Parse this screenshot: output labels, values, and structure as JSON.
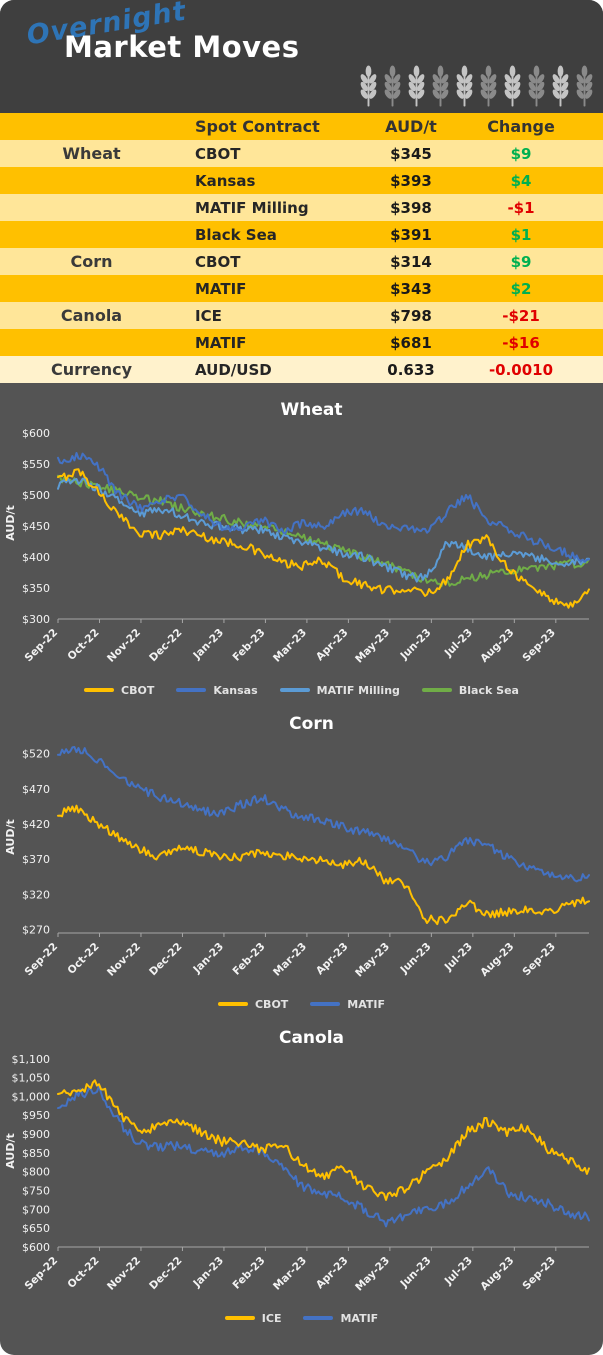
{
  "header": {
    "script_word": "Overnight",
    "title": "Market Moves",
    "wheat_icon_count": 10,
    "wheat_icon_colors": [
      "#c4c4c4",
      "#8a8a8a"
    ]
  },
  "table": {
    "columns": [
      "",
      "Spot Contract",
      "AUD/t",
      "Change"
    ],
    "rows": [
      {
        "category": "Wheat",
        "contract": "CBOT",
        "price": "$345",
        "change": "$9",
        "direction": "up"
      },
      {
        "category": "",
        "contract": "Kansas",
        "price": "$393",
        "change": "$4",
        "direction": "up"
      },
      {
        "category": "",
        "contract": "MATIF Milling",
        "price": "$398",
        "change": "-$1",
        "direction": "down"
      },
      {
        "category": "",
        "contract": "Black Sea",
        "price": "$391",
        "change": "$1",
        "direction": "up"
      },
      {
        "category": "Corn",
        "contract": "CBOT",
        "price": "$314",
        "change": "$9",
        "direction": "up"
      },
      {
        "category": "",
        "contract": "MATIF",
        "price": "$343",
        "change": "$2",
        "direction": "up"
      },
      {
        "category": "Canola",
        "contract": "ICE",
        "price": "$798",
        "change": "-$21",
        "direction": "down"
      },
      {
        "category": "",
        "contract": "MATIF",
        "price": "$681",
        "change": "-$16",
        "direction": "down"
      },
      {
        "category": "Currency",
        "contract": "AUD/USD",
        "price": "0.633",
        "change": "-0.0010",
        "direction": "down"
      }
    ]
  },
  "colors": {
    "background": "#545454",
    "header_bg": "#3f3f3f",
    "gold": "#FFC000",
    "light_row": "#FFE699",
    "pale_row": "#FFF2CC",
    "up_green": "#00B050",
    "down_red": "#E00000",
    "script_blue": "#2E74B6",
    "axis_gray": "#a6a6a6",
    "chart_text": "#f2f2f2"
  },
  "chart_data": [
    {
      "type": "line",
      "title": "Wheat",
      "ylabel": "AUD/t",
      "ylim": [
        300,
        610
      ],
      "yticks": [
        "$300",
        "$350",
        "$400",
        "$450",
        "$500",
        "$550",
        "$600"
      ],
      "x_labels": [
        "Sep-22",
        "Oct-22",
        "Nov-22",
        "Dec-22",
        "Jan-23",
        "Feb-23",
        "Mar-23",
        "Apr-23",
        "May-23",
        "Jun-23",
        "Jul-23",
        "Aug-23",
        "Sep-23"
      ],
      "grid": false,
      "legend_position": "bottom",
      "noise_amp": 7,
      "series": [
        {
          "name": "CBOT",
          "color": "#FFC000",
          "values": [
            525,
            540,
            505,
            465,
            440,
            435,
            445,
            435,
            425,
            420,
            405,
            390,
            385,
            395,
            365,
            355,
            345,
            350,
            340,
            360,
            420,
            430,
            385,
            355,
            335,
            320,
            345
          ]
        },
        {
          "name": "Kansas",
          "color": "#4472C4",
          "values": [
            555,
            565,
            545,
            500,
            480,
            490,
            500,
            470,
            450,
            445,
            460,
            440,
            455,
            450,
            470,
            475,
            450,
            445,
            440,
            470,
            500,
            460,
            445,
            430,
            420,
            405,
            393
          ]
        },
        {
          "name": "MATIF Milling",
          "color": "#5B9BD5",
          "values": [
            515,
            525,
            510,
            490,
            470,
            475,
            470,
            455,
            450,
            445,
            445,
            430,
            425,
            415,
            405,
            400,
            385,
            370,
            365,
            420,
            415,
            400,
            405,
            400,
            395,
            390,
            398
          ]
        },
        {
          "name": "Black Sea",
          "color": "#70AD47",
          "values": [
            525,
            520,
            515,
            505,
            495,
            490,
            480,
            470,
            462,
            455,
            448,
            440,
            430,
            420,
            410,
            400,
            390,
            375,
            360,
            358,
            365,
            372,
            378,
            383,
            386,
            389,
            391
          ]
        }
      ]
    },
    {
      "type": "line",
      "title": "Corn",
      "ylabel": "AUD/t",
      "ylim": [
        265,
        538
      ],
      "yticks": [
        "$270",
        "$320",
        "$370",
        "$420",
        "$470",
        "$520"
      ],
      "x_labels": [
        "Sep-22",
        "Oct-22",
        "Nov-22",
        "Dec-22",
        "Jan-23",
        "Feb-23",
        "Mar-23",
        "Apr-23",
        "May-23",
        "Jun-23",
        "Jul-23",
        "Aug-23",
        "Sep-23"
      ],
      "grid": false,
      "legend_position": "bottom",
      "noise_amp": 6,
      "series": [
        {
          "name": "CBOT",
          "color": "#FFC000",
          "values": [
            435,
            442,
            420,
            400,
            385,
            372,
            388,
            380,
            375,
            372,
            382,
            375,
            372,
            368,
            362,
            368,
            340,
            335,
            285,
            282,
            310,
            292,
            295,
            300,
            296,
            305,
            314
          ]
        },
        {
          "name": "MATIF",
          "color": "#4472C4",
          "values": [
            520,
            528,
            510,
            490,
            470,
            458,
            450,
            440,
            435,
            448,
            458,
            440,
            430,
            425,
            415,
            408,
            400,
            385,
            365,
            372,
            398,
            390,
            372,
            360,
            350,
            342,
            343
          ]
        }
      ]
    },
    {
      "type": "line",
      "title": "Canola",
      "ylabel": "AUD/t",
      "ylim": [
        600,
        1110
      ],
      "yticks": [
        "$600",
        "$650",
        "$700",
        "$750",
        "$800",
        "$850",
        "$900",
        "$950",
        "$1,000",
        "$1,050",
        "$1,100"
      ],
      "x_labels": [
        "Sep-22",
        "Oct-22",
        "Nov-22",
        "Dec-22",
        "Jan-23",
        "Feb-23",
        "Mar-23",
        "Apr-23",
        "May-23",
        "Jun-23",
        "Jul-23",
        "Aug-23",
        "Sep-23"
      ],
      "grid": false,
      "legend_position": "bottom",
      "noise_amp": 12,
      "series": [
        {
          "name": "ICE",
          "color": "#FFC000",
          "values": [
            1000,
            1015,
            1035,
            955,
            905,
            925,
            935,
            905,
            880,
            875,
            860,
            870,
            815,
            790,
            810,
            760,
            735,
            755,
            795,
            830,
            905,
            935,
            905,
            920,
            860,
            830,
            798
          ]
        },
        {
          "name": "MATIF",
          "color": "#4472C4",
          "values": [
            970,
            1005,
            1020,
            930,
            875,
            865,
            870,
            855,
            845,
            865,
            855,
            810,
            760,
            745,
            730,
            700,
            665,
            680,
            700,
            715,
            760,
            810,
            745,
            730,
            715,
            690,
            681
          ]
        }
      ]
    }
  ]
}
